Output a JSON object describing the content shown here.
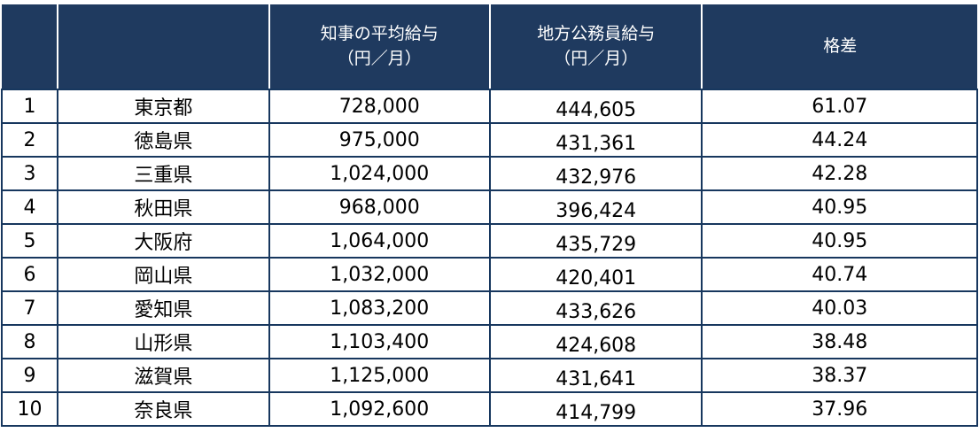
{
  "colors": {
    "header_bg": "#1f3a5f",
    "header_text": "#ffffff",
    "border": "#17375e",
    "body_bg": "#ffffff",
    "body_text": "#000000"
  },
  "chart_data": {
    "type": "table",
    "title": "",
    "columns": [
      {
        "key": "rank",
        "label": ""
      },
      {
        "key": "prefecture",
        "label": ""
      },
      {
        "key": "governor_salary",
        "label": "知事の平均給与\n（円／月）"
      },
      {
        "key": "civil_servant_salary",
        "label": "地方公務員給与\n（円／月）"
      },
      {
        "key": "gap",
        "label": "格差"
      }
    ],
    "rows": [
      {
        "rank": "1",
        "prefecture": "東京都",
        "governor_salary": "728,000",
        "civil_servant_salary": "444,605",
        "gap": "61.07"
      },
      {
        "rank": "2",
        "prefecture": "徳島県",
        "governor_salary": "975,000",
        "civil_servant_salary": "431,361",
        "gap": "44.24"
      },
      {
        "rank": "3",
        "prefecture": "三重県",
        "governor_salary": "1,024,000",
        "civil_servant_salary": "432,976",
        "gap": "42.28"
      },
      {
        "rank": "4",
        "prefecture": "秋田県",
        "governor_salary": "968,000",
        "civil_servant_salary": "396,424",
        "gap": "40.95"
      },
      {
        "rank": "5",
        "prefecture": "大阪府",
        "governor_salary": "1,064,000",
        "civil_servant_salary": "435,729",
        "gap": "40.95"
      },
      {
        "rank": "6",
        "prefecture": "岡山県",
        "governor_salary": "1,032,000",
        "civil_servant_salary": "420,401",
        "gap": "40.74"
      },
      {
        "rank": "7",
        "prefecture": "愛知県",
        "governor_salary": "1,083,200",
        "civil_servant_salary": "433,626",
        "gap": "40.03"
      },
      {
        "rank": "8",
        "prefecture": "山形県",
        "governor_salary": "1,103,400",
        "civil_servant_salary": "424,608",
        "gap": "38.48"
      },
      {
        "rank": "9",
        "prefecture": "滋賀県",
        "governor_salary": "1,125,000",
        "civil_servant_salary": "431,641",
        "gap": "38.37"
      },
      {
        "rank": "10",
        "prefecture": "奈良県",
        "governor_salary": "1,092,600",
        "civil_servant_salary": "414,799",
        "gap": "37.96"
      }
    ]
  }
}
